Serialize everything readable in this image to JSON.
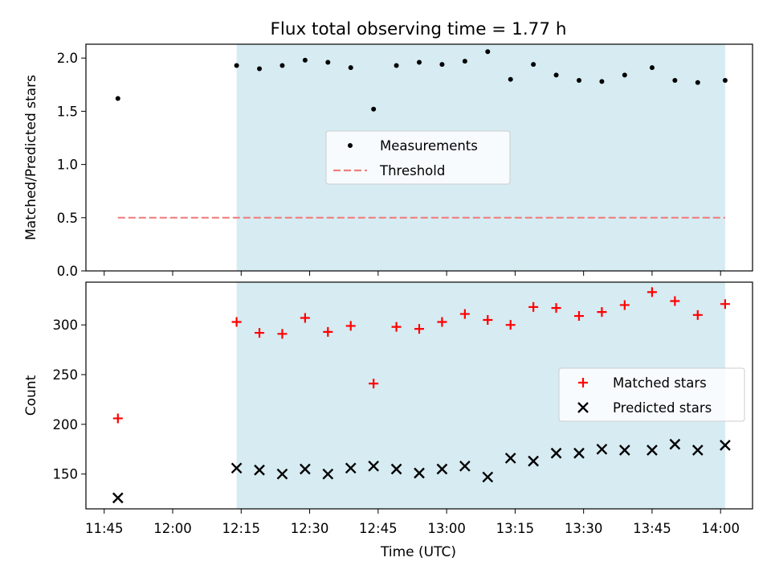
{
  "figure": {
    "title": "Flux total observing time = 1.77 h",
    "xlabel": "Time (UTC)"
  },
  "chart_data": [
    {
      "type": "scatter",
      "panel": "top",
      "title": "Flux total observing time = 1.77 h",
      "ylabel": "Matched/Predicted stars",
      "xlabel": "",
      "xlim": [
        "11:41",
        "14:07"
      ],
      "ylim": [
        0,
        2.13
      ],
      "yticks": [
        "0.0",
        "0.5",
        "1.0",
        "1.5",
        "2.0"
      ],
      "shaded_interval": {
        "start": "12:14",
        "end": "14:01",
        "color": "#add8e6"
      },
      "legend": {
        "position": "center",
        "entries": [
          "Measurements",
          "Threshold"
        ]
      },
      "series": [
        {
          "name": "Measurements",
          "style": "dot",
          "color": "#000000",
          "points": [
            {
              "x": "11:48",
              "y": 1.62
            },
            {
              "x": "12:14",
              "y": 1.93
            },
            {
              "x": "12:19",
              "y": 1.9
            },
            {
              "x": "12:24",
              "y": 1.93
            },
            {
              "x": "12:29",
              "y": 1.98
            },
            {
              "x": "12:34",
              "y": 1.96
            },
            {
              "x": "12:39",
              "y": 1.91
            },
            {
              "x": "12:44",
              "y": 1.52
            },
            {
              "x": "12:49",
              "y": 1.93
            },
            {
              "x": "12:54",
              "y": 1.96
            },
            {
              "x": "12:59",
              "y": 1.94
            },
            {
              "x": "13:04",
              "y": 1.97
            },
            {
              "x": "13:09",
              "y": 2.06
            },
            {
              "x": "13:14",
              "y": 1.8
            },
            {
              "x": "13:19",
              "y": 1.94
            },
            {
              "x": "13:24",
              "y": 1.84
            },
            {
              "x": "13:29",
              "y": 1.79
            },
            {
              "x": "13:34",
              "y": 1.78
            },
            {
              "x": "13:39",
              "y": 1.84
            },
            {
              "x": "13:45",
              "y": 1.91
            },
            {
              "x": "13:50",
              "y": 1.79
            },
            {
              "x": "13:55",
              "y": 1.77
            },
            {
              "x": "14:01",
              "y": 1.79
            }
          ]
        },
        {
          "name": "Threshold",
          "style": "dashed-line",
          "color": "#f08080",
          "points": [
            {
              "x": "11:48",
              "y": 0.5
            },
            {
              "x": "14:01",
              "y": 0.5
            }
          ]
        }
      ]
    },
    {
      "type": "scatter",
      "panel": "bottom",
      "title": "",
      "ylabel": "Count",
      "xlabel": "Time (UTC)",
      "xlim": [
        "11:41",
        "14:07"
      ],
      "ylim": [
        115,
        343
      ],
      "yticks": [
        "150",
        "200",
        "250",
        "300"
      ],
      "xticks": [
        "11:45",
        "12:00",
        "12:15",
        "12:30",
        "12:45",
        "13:00",
        "13:15",
        "13:30",
        "13:45",
        "14:00"
      ],
      "shaded_interval": {
        "start": "12:14",
        "end": "14:01",
        "color": "#add8e6"
      },
      "legend": {
        "position": "center-right",
        "entries": [
          "Matched stars",
          "Predicted stars"
        ]
      },
      "series": [
        {
          "name": "Matched stars",
          "style": "plus",
          "color": "#ff0000",
          "points": [
            {
              "x": "11:48",
              "y": 206
            },
            {
              "x": "12:14",
              "y": 303
            },
            {
              "x": "12:19",
              "y": 292
            },
            {
              "x": "12:24",
              "y": 291
            },
            {
              "x": "12:29",
              "y": 307
            },
            {
              "x": "12:34",
              "y": 293
            },
            {
              "x": "12:39",
              "y": 299
            },
            {
              "x": "12:44",
              "y": 241
            },
            {
              "x": "12:49",
              "y": 298
            },
            {
              "x": "12:54",
              "y": 296
            },
            {
              "x": "12:59",
              "y": 303
            },
            {
              "x": "13:04",
              "y": 311
            },
            {
              "x": "13:09",
              "y": 305
            },
            {
              "x": "13:14",
              "y": 300
            },
            {
              "x": "13:19",
              "y": 318
            },
            {
              "x": "13:24",
              "y": 317
            },
            {
              "x": "13:29",
              "y": 309
            },
            {
              "x": "13:34",
              "y": 313
            },
            {
              "x": "13:39",
              "y": 320
            },
            {
              "x": "13:45",
              "y": 333
            },
            {
              "x": "13:50",
              "y": 324
            },
            {
              "x": "13:55",
              "y": 310
            },
            {
              "x": "14:01",
              "y": 321
            }
          ]
        },
        {
          "name": "Predicted stars",
          "style": "x",
          "color": "#000000",
          "points": [
            {
              "x": "11:48",
              "y": 126
            },
            {
              "x": "12:14",
              "y": 156
            },
            {
              "x": "12:19",
              "y": 154
            },
            {
              "x": "12:24",
              "y": 150
            },
            {
              "x": "12:29",
              "y": 155
            },
            {
              "x": "12:34",
              "y": 150
            },
            {
              "x": "12:39",
              "y": 156
            },
            {
              "x": "12:44",
              "y": 158
            },
            {
              "x": "12:49",
              "y": 155
            },
            {
              "x": "12:54",
              "y": 151
            },
            {
              "x": "12:59",
              "y": 155
            },
            {
              "x": "13:04",
              "y": 158
            },
            {
              "x": "13:09",
              "y": 147
            },
            {
              "x": "13:14",
              "y": 166
            },
            {
              "x": "13:19",
              "y": 163
            },
            {
              "x": "13:24",
              "y": 171
            },
            {
              "x": "13:29",
              "y": 171
            },
            {
              "x": "13:34",
              "y": 175
            },
            {
              "x": "13:39",
              "y": 174
            },
            {
              "x": "13:45",
              "y": 174
            },
            {
              "x": "13:50",
              "y": 180
            },
            {
              "x": "13:55",
              "y": 174
            },
            {
              "x": "14:01",
              "y": 179
            }
          ]
        }
      ]
    }
  ]
}
